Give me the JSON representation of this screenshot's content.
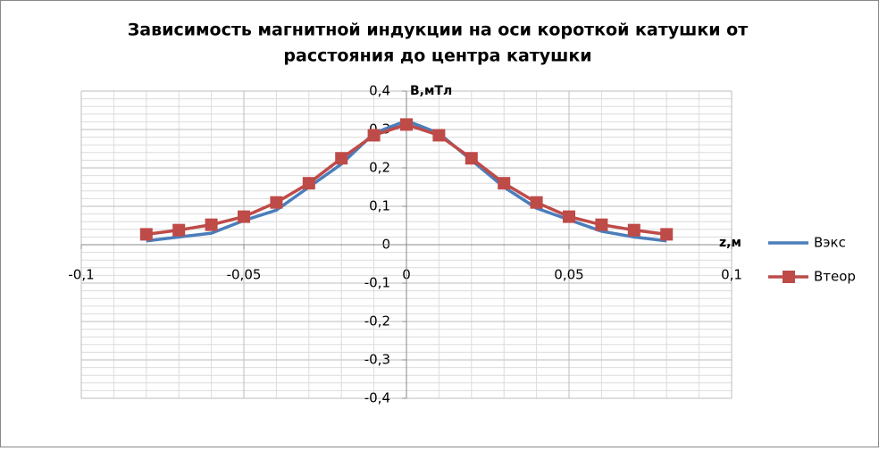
{
  "chart_data": {
    "type": "line",
    "title": [
      "Зависимость магнитной индукции на оси короткой катушки от",
      "расстояния до центра катушки"
    ],
    "x_label": "z,м",
    "y_label": "B,мТл",
    "x": [
      -0.08,
      -0.07,
      -0.06,
      -0.05,
      -0.04,
      -0.03,
      -0.02,
      -0.01,
      0,
      0.01,
      0.02,
      0.03,
      0.04,
      0.05,
      0.06,
      0.07,
      0.08
    ],
    "series": [
      {
        "name": "Вэкс",
        "color": "#4a7ebb",
        "marker": "none",
        "values": [
          0.01,
          0.02,
          0.03,
          0.063,
          0.09,
          0.15,
          0.21,
          0.29,
          0.323,
          0.29,
          0.22,
          0.15,
          0.095,
          0.065,
          0.035,
          0.02,
          0.01
        ]
      },
      {
        "name": "Втеор",
        "color": "#be4b48",
        "marker": "square",
        "values": [
          0.027,
          0.038,
          0.052,
          0.073,
          0.11,
          0.16,
          0.225,
          0.285,
          0.313,
          0.285,
          0.225,
          0.16,
          0.11,
          0.073,
          0.052,
          0.038,
          0.027
        ]
      }
    ],
    "xlim": [
      -0.1,
      0.1
    ],
    "xticks": [
      {
        "value": -0.1,
        "label": "-0,1"
      },
      {
        "value": -0.05,
        "label": "-0,05"
      },
      0,
      {
        "value": 0.05,
        "label": "0,05"
      },
      {
        "value": 0.1,
        "label": "0,1"
      }
    ],
    "ylim": [
      -0.4,
      0.4
    ],
    "yticks": [
      {
        "value": -0.4,
        "label": "-0,4"
      },
      {
        "value": -0.3,
        "label": "-0,3"
      },
      {
        "value": -0.2,
        "label": "-0,2"
      },
      {
        "value": -0.1,
        "label": "-0,1"
      },
      0,
      {
        "value": 0.1,
        "label": "0,1"
      },
      {
        "value": 0.2,
        "label": "0,2"
      },
      {
        "value": 0.3,
        "label": "0,3"
      },
      {
        "value": 0.4,
        "label": "0,4"
      }
    ],
    "grid": true,
    "legend": "right"
  }
}
